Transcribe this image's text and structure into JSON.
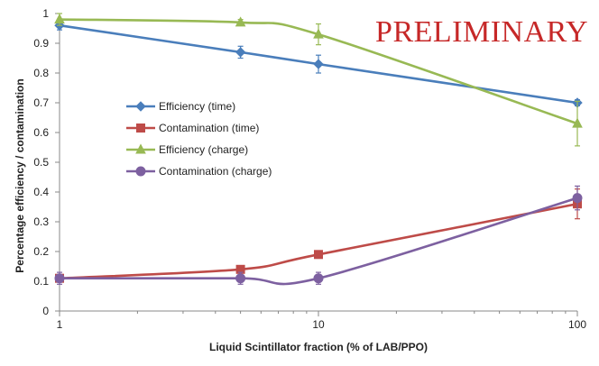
{
  "chart_data": {
    "type": "line",
    "title": "",
    "annotation": "PRELIMINARY",
    "xlabel": "Liquid Scintillator fraction (% of LAB/PPO)",
    "ylabel": "Percentage efficiency / contamination",
    "xscale": "log",
    "x_ticks": [
      1,
      10,
      100
    ],
    "x_tick_labels": [
      "1",
      "10",
      "100"
    ],
    "ylim": [
      0,
      1
    ],
    "y_ticks": [
      0,
      0.1,
      0.2,
      0.3,
      0.4,
      0.5,
      0.6,
      0.7,
      0.8,
      0.9,
      1
    ],
    "y_tick_labels": [
      "0",
      "0.1",
      "0.2",
      "0.3",
      "0.4",
      "0.5",
      "0.6",
      "0.7",
      "0.8",
      "0.9",
      "1"
    ],
    "grid": false,
    "legend_position": "center-left",
    "x": [
      1,
      5,
      10,
      100
    ],
    "series": [
      {
        "name": "Efficiency (time)",
        "color": "#4a7ebb",
        "marker": "diamond",
        "values": [
          0.96,
          0.87,
          0.83,
          0.7
        ],
        "errors": [
          0.015,
          0.02,
          0.03,
          0.01
        ]
      },
      {
        "name": "Contamination (time)",
        "color": "#be4b48",
        "marker": "square",
        "values": [
          0.11,
          0.14,
          0.19,
          0.36
        ],
        "errors": [
          0.01,
          0.01,
          0.01,
          0.05
        ]
      },
      {
        "name": "Efficiency (charge)",
        "color": "#98b954",
        "marker": "triangle",
        "values": [
          0.98,
          0.97,
          0.93,
          0.63
        ],
        "errors": [
          0.02,
          0.01,
          0.035,
          0.075
        ]
      },
      {
        "name": "Contamination (charge)",
        "color": "#7d60a0",
        "marker": "circle",
        "values": [
          0.11,
          0.11,
          0.11,
          0.38
        ],
        "errors": [
          0.02,
          0.02,
          0.02,
          0.04
        ]
      }
    ]
  }
}
